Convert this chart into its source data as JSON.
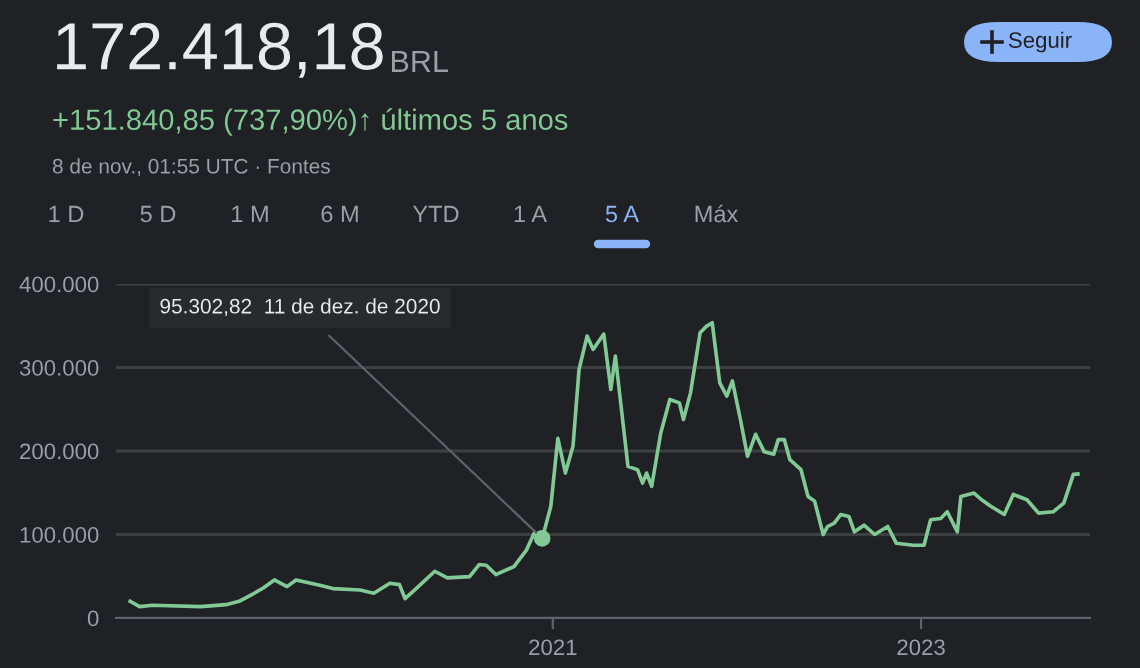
{
  "chart_data": {
    "type": "line",
    "title": "172.418,18 BRL",
    "x": [
      "2018-09-16",
      "2018-10-05",
      "2018-10-30",
      "2019-02-03",
      "2019-03-25",
      "2019-04-20",
      "2019-05-20",
      "2019-06-07",
      "2019-06-29",
      "2019-07-24",
      "2019-08-11",
      "2019-09-27",
      "2019-10-23",
      "2019-12-16",
      "2020-01-12",
      "2020-02-13",
      "2020-03-03",
      "2020-03-14",
      "2020-04-05",
      "2020-05-12",
      "2020-06-06",
      "2020-07-20",
      "2020-08-08",
      "2020-08-22",
      "2020-09-10",
      "2020-10-16",
      "2020-11-10",
      "2020-11-25",
      "2020-12-11",
      "2020-12-28",
      "2021-01-11",
      "2021-01-26",
      "2021-02-10",
      "2021-02-22",
      "2021-03-10",
      "2021-03-22",
      "2021-04-12",
      "2021-04-26",
      "2021-05-05",
      "2021-05-30",
      "2021-06-18",
      "2021-06-28",
      "2021-07-06",
      "2021-07-16",
      "2021-08-03",
      "2021-08-21",
      "2021-09-09",
      "2021-09-17",
      "2021-10-01",
      "2021-10-20",
      "2021-11-02",
      "2021-11-13",
      "2021-11-28",
      "2021-12-12",
      "2021-12-23",
      "2022-01-08",
      "2022-01-22",
      "2022-02-07",
      "2022-02-24",
      "2022-03-15",
      "2022-03-24",
      "2022-04-05",
      "2022-04-16",
      "2022-05-08",
      "2022-05-22",
      "2022-06-04",
      "2022-06-21",
      "2022-06-30",
      "2022-07-13",
      "2022-07-26",
      "2022-08-11",
      "2022-08-22",
      "2022-09-10",
      "2022-10-01",
      "2022-10-27",
      "2022-11-13",
      "2022-12-17",
      "2023-01-07",
      "2023-01-20",
      "2023-02-09",
      "2023-02-22",
      "2023-03-14",
      "2023-03-21",
      "2023-04-16",
      "2023-05-01",
      "2023-05-20",
      "2023-06-15",
      "2023-07-03",
      "2023-07-30",
      "2023-08-22",
      "2023-09-20",
      "2023-10-11",
      "2023-10-30",
      "2023-11-08"
    ],
    "series": [
      {
        "color": "#81c995",
        "values": [
          20000,
          13600,
          15200,
          13600,
          16000,
          20000,
          29600,
          36000,
          45600,
          37600,
          45600,
          39200,
          35200,
          33600,
          29600,
          41600,
          40000,
          23200,
          35200,
          56000,
          48000,
          49600,
          64000,
          63200,
          52000,
          61600,
          81600,
          101600,
          95302.82,
          133600,
          215200,
          173600,
          205600,
          297600,
          337600,
          321600,
          340000,
          273600,
          313600,
          181600,
          177600,
          161600,
          173600,
          157600,
          221600,
          261600,
          257600,
          237600,
          269600,
          341600,
          349600,
          353600,
          281600,
          265600,
          284000,
          237600,
          193600,
          220000,
          199200,
          196000,
          213600,
          213600,
          189600,
          177600,
          145600,
          140000,
          100000,
          109600,
          113600,
          124000,
          121600,
          103200,
          111200,
          100000,
          109600,
          89600,
          87200,
          87200,
          117600,
          119200,
          127200,
          103200,
          145600,
          149600,
          141600,
          133600,
          124000,
          148000,
          141600,
          125600,
          127200,
          137600,
          172000,
          172418.18
        ]
      }
    ],
    "xlim": [
      "2018-08-19",
      "2023-12-02"
    ],
    "xticks": [
      {
        "value": "2021-01-01",
        "label": "2021"
      },
      {
        "value": "2023-01-01",
        "label": "2023"
      }
    ],
    "ylim": [
      0,
      400000
    ],
    "yticks": [
      {
        "value": 0,
        "label": "0"
      },
      {
        "value": 100000,
        "label": "100.000"
      },
      {
        "value": 200000,
        "label": "200.000"
      },
      {
        "value": 300000,
        "label": "300.000"
      },
      {
        "value": 400000,
        "label": "400.000"
      }
    ],
    "grid": "y",
    "annotations": [
      "+151.840,85 (737,90%)↑ últimos 5 anos",
      "8 de nov., 01:55 UTC · Fontes",
      "Seguir",
      "1 D",
      "5 D",
      "1 M",
      "6 M",
      "YTD",
      "1 A",
      "5 A",
      "Máx",
      {
        "text": "95.302,82  11 de dez. de 2020",
        "x": "2020-12-11",
        "y": 95302.82
      }
    ]
  }
}
